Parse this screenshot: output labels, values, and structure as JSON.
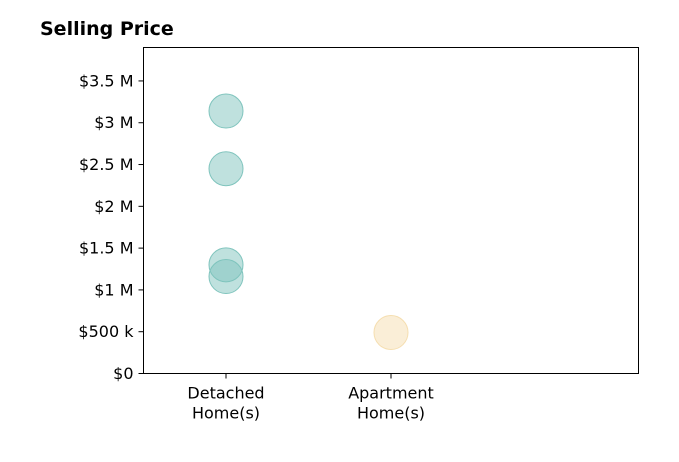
{
  "chart_data": {
    "type": "scatter",
    "title": "Selling Price",
    "xlabel": "",
    "ylabel": "",
    "categories": [
      [
        "Detached",
        "Home(s)"
      ],
      [
        "Apartment",
        "Home(s)"
      ]
    ],
    "xlim": [
      -0.5,
      2.5
    ],
    "ylim": [
      0,
      3900000
    ],
    "y_ticks": [
      {
        "value": 0,
        "label": "$0"
      },
      {
        "value": 500000,
        "label": "$500 k"
      },
      {
        "value": 1000000,
        "label": "$1 M"
      },
      {
        "value": 1500000,
        "label": "$1.5 M"
      },
      {
        "value": 2000000,
        "label": "$2 M"
      },
      {
        "value": 2500000,
        "label": "$2.5 M"
      },
      {
        "value": 3000000,
        "label": "$3 M"
      },
      {
        "value": 3500000,
        "label": "$3.5 M"
      }
    ],
    "grid": false,
    "legend": "none",
    "series": [
      {
        "category_index": 0,
        "color": "#7fc4bd",
        "points": [
          3140000,
          2450000,
          1300000,
          1160000
        ]
      },
      {
        "category_index": 1,
        "color": "#f5deb0",
        "points": [
          490000
        ]
      }
    ]
  }
}
